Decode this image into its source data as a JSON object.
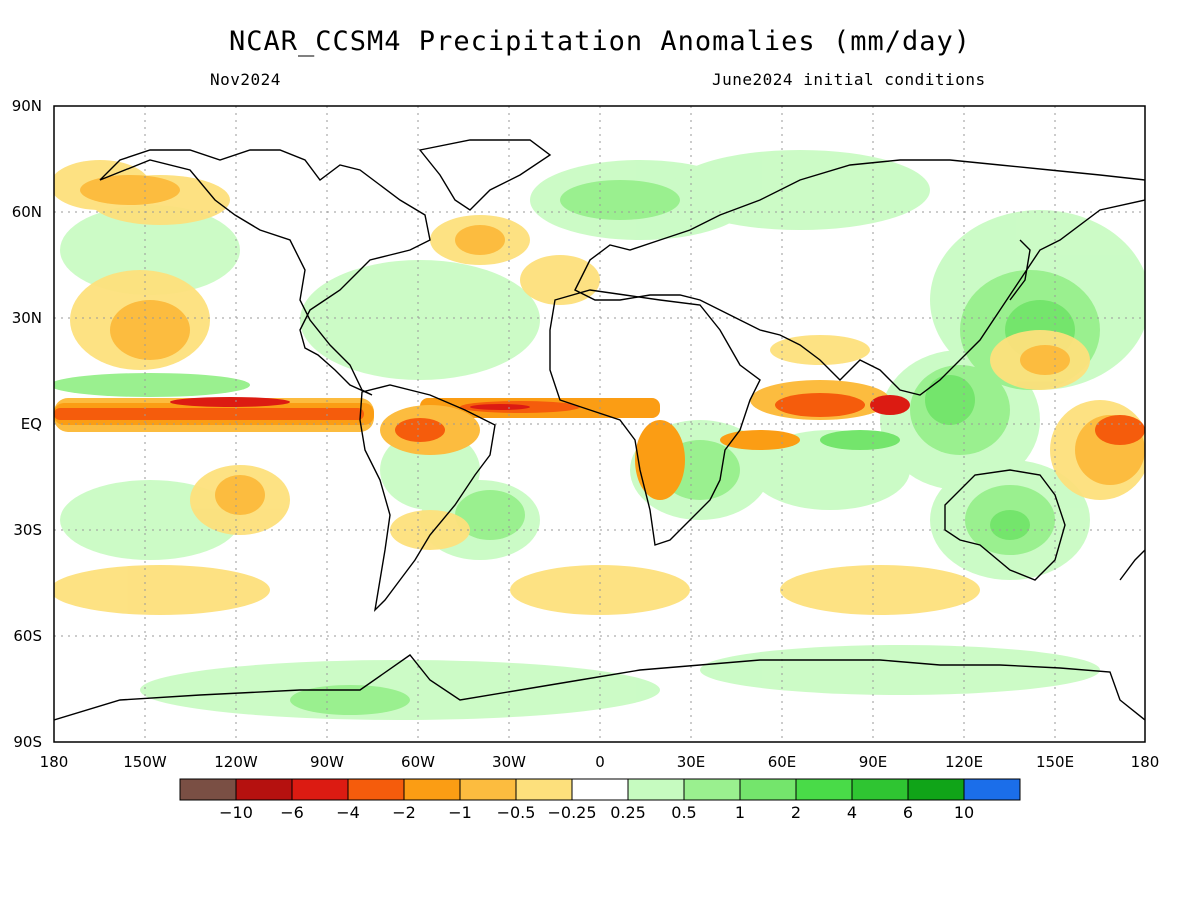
{
  "title": "NCAR_CCSM4 Precipitation Anomalies (mm/day)",
  "subtitle_left": "Nov2024",
  "subtitle_right": "June2024 initial conditions",
  "lat_labels": [
    "90N",
    "60N",
    "30N",
    "EQ",
    "30S",
    "60S",
    "90S"
  ],
  "lon_labels": [
    "180",
    "150W",
    "120W",
    "90W",
    "60W",
    "30W",
    "0",
    "30E",
    "60E",
    "90E",
    "120E",
    "150E",
    "180"
  ],
  "colorbar": {
    "colors": [
      "#7a4f44",
      "#b5110f",
      "#dc1b12",
      "#f55c0c",
      "#fb9d14",
      "#fcbc3f",
      "#fde07c",
      "#ffffff",
      "#c6fbc0",
      "#9af08f",
      "#74e56c",
      "#49db48",
      "#2fc532",
      "#10a418",
      "#1b6eea"
    ],
    "labels": [
      "−10",
      "−6",
      "−4",
      "−2",
      "−1",
      "−0.5",
      "−0.25",
      "0.25",
      "0.5",
      "1",
      "2",
      "4",
      "6",
      "10"
    ]
  }
}
